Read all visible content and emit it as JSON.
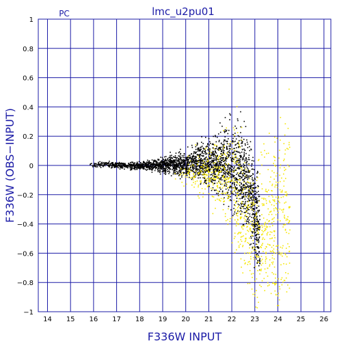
{
  "chart_data": {
    "type": "scatter",
    "title": "lmc_u2pu01",
    "corner_label": "PC",
    "xlabel": "F336W INPUT",
    "ylabel": "F336W (OBS−INPUT)",
    "xlim": [
      13.6,
      26.3
    ],
    "ylim": [
      -1,
      1
    ],
    "x_ticks": [
      14,
      15,
      16,
      17,
      18,
      19,
      20,
      21,
      22,
      23,
      24,
      25,
      26
    ],
    "y_ticks": [
      1,
      0.8,
      0.6,
      0.4,
      0.2,
      0,
      -0.2,
      -0.4,
      -0.6,
      -0.8,
      -1
    ],
    "y_tick_labels": [
      "1",
      "0.8",
      "0.6",
      "0.4",
      "0.2",
      "0",
      "−0.2",
      "−0.4",
      "−0.6",
      "−0.8",
      "−1"
    ],
    "grid": true,
    "colors": {
      "axes": "#1a1aa6",
      "series_black": "#000000",
      "series_yellow": "#f5e600"
    },
    "series": [
      {
        "color": "#000000",
        "description": "black points",
        "envelope": [
          {
            "x": 15.8,
            "y_center": 0.01,
            "spread": 0.015
          },
          {
            "x": 16.5,
            "y_center": 0.01,
            "spread": 0.02
          },
          {
            "x": 17.5,
            "y_center": 0.0,
            "spread": 0.025
          },
          {
            "x": 18.5,
            "y_center": 0.0,
            "spread": 0.035
          },
          {
            "x": 19.5,
            "y_center": 0.01,
            "spread": 0.07
          },
          {
            "x": 20.5,
            "y_center": 0.02,
            "spread": 0.12
          },
          {
            "x": 21.5,
            "y_center": 0.02,
            "spread": 0.22
          },
          {
            "x": 22.3,
            "y_center": -0.02,
            "spread": 0.32
          },
          {
            "x": 22.8,
            "y_center": -0.15,
            "spread": 0.35
          },
          {
            "x": 23.2,
            "y_center": -0.5,
            "spread": 0.35
          }
        ]
      },
      {
        "color": "#f5e600",
        "description": "yellow points",
        "envelope": [
          {
            "x": 19.5,
            "y_center": -0.05,
            "spread": 0.08
          },
          {
            "x": 20.5,
            "y_center": -0.05,
            "spread": 0.15
          },
          {
            "x": 21.5,
            "y_center": -0.05,
            "spread": 0.25
          },
          {
            "x": 22.3,
            "y_center": -0.2,
            "spread": 0.45
          },
          {
            "x": 23.0,
            "y_center": -0.5,
            "spread": 0.5
          },
          {
            "x": 24.5,
            "y_center": -0.3,
            "spread": 0.8
          }
        ]
      }
    ]
  }
}
